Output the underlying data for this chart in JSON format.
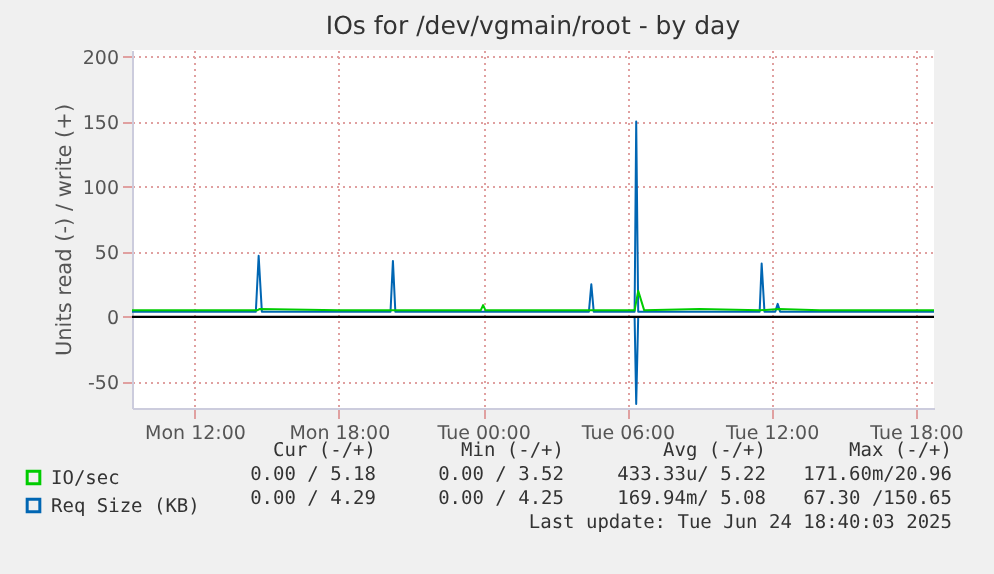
{
  "chart_data": {
    "type": "line",
    "title": "IOs for /dev/vgmain/root - by day",
    "ylabel": "Units read (-) / write (+)",
    "xlim": [
      "2025-06-23T09:24",
      "2025-06-24T18:45"
    ],
    "xticks": [
      {
        "value": "2025-06-23T12:00",
        "label": "Mon 12:00"
      },
      {
        "value": "2025-06-23T18:00",
        "label": "Mon 18:00"
      },
      {
        "value": "2025-06-24T00:00",
        "label": "Tue 00:00"
      },
      {
        "value": "2025-06-24T06:00",
        "label": "Tue 06:00"
      },
      {
        "value": "2025-06-24T12:00",
        "label": "Tue 12:00"
      },
      {
        "value": "2025-06-24T18:00",
        "label": "Tue 18:00"
      }
    ],
    "ylim": [
      -70,
      205
    ],
    "yticks": [
      -50,
      0,
      50,
      100,
      150,
      200
    ],
    "grid": true,
    "legend": "bottom left",
    "series": [
      {
        "name": "Req Size (KB)",
        "color": "#0066b3",
        "x": [
          "2025-06-23T09:24",
          "2025-06-23T14:33",
          "2025-06-23T14:40",
          "2025-06-23T14:48",
          "2025-06-23T20:09",
          "2025-06-23T20:15",
          "2025-06-23T20:21",
          "2025-06-24T04:24",
          "2025-06-24T04:30",
          "2025-06-24T04:36",
          "2025-06-24T06:18",
          "2025-06-24T06:22",
          "2025-06-24T06:27",
          "2025-06-24T11:30",
          "2025-06-24T11:35",
          "2025-06-24T11:42",
          "2025-06-24T12:09",
          "2025-06-24T12:15",
          "2025-06-24T12:21",
          "2025-06-24T18:45"
        ],
        "values": [
          4,
          4,
          47,
          4,
          4,
          43,
          4,
          4,
          25,
          4,
          4,
          150,
          4,
          4,
          41,
          4,
          4,
          10,
          4,
          4
        ]
      },
      {
        "color": "#0066b3",
        "x": [
          "2025-06-24T06:18",
          "2025-06-24T06:22",
          "2025-06-24T06:27"
        ],
        "values": [
          0,
          -67,
          0
        ]
      },
      {
        "name": "IO/sec",
        "color": "#00cc00",
        "x": [
          "2025-06-23T09:24",
          "2025-06-23T12:00",
          "2025-06-23T14:36",
          "2025-06-23T14:42",
          "2025-06-23T18:00",
          "2025-06-23T20:12",
          "2025-06-23T23:54",
          "2025-06-24T00:00",
          "2025-06-24T00:06",
          "2025-06-24T04:00",
          "2025-06-24T06:18",
          "2025-06-24T06:27",
          "2025-06-24T06:42",
          "2025-06-24T09:00",
          "2025-06-24T11:30",
          "2025-06-24T12:18",
          "2025-06-24T14:00",
          "2025-06-24T18:00",
          "2025-06-24T18:45"
        ],
        "values": [
          5,
          5,
          5,
          6,
          5,
          5,
          5,
          9,
          5,
          5,
          5,
          20,
          5,
          6,
          5,
          6,
          5,
          5,
          5
        ]
      }
    ],
    "ref_lines": [
      {
        "axis": "y",
        "value": 0,
        "color": "#000000"
      }
    ],
    "annotations": [
      "Cur (-/+)",
      "Min (-/+)",
      "Avg (-/+)",
      "Max (-/+)",
      "0.00 / 5.18",
      "0.00 / 3.52",
      "433.33u/ 5.22",
      "171.60m/20.96",
      "0.00 / 4.29",
      "0.00 / 4.25",
      "169.94m/ 5.08",
      "67.30 /150.65",
      "Last update: Tue Jun 24 18:40:03 2025"
    ]
  }
}
